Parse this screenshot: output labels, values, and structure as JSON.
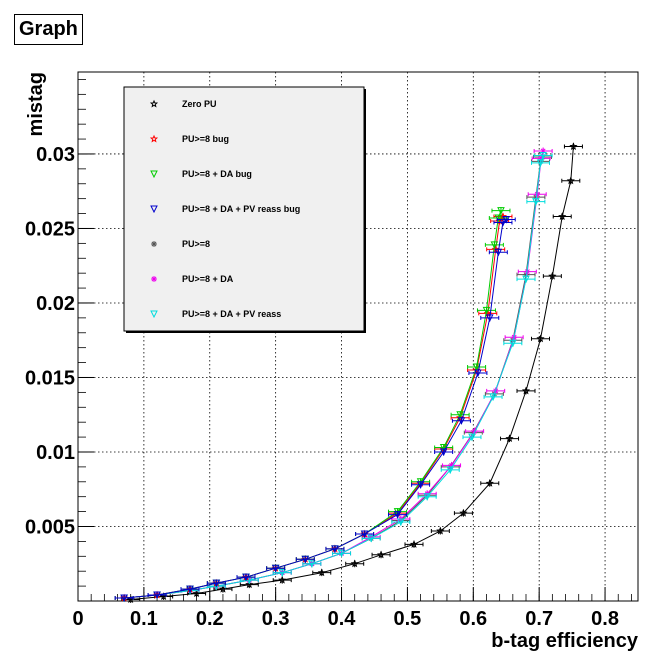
{
  "title": "Graph",
  "chart_data": {
    "type": "scatter",
    "title": "Graph",
    "xlabel": "b-tag efficiency",
    "ylabel": "mistag",
    "xlim": [
      0,
      0.85
    ],
    "ylim": [
      0,
      0.0355
    ],
    "x_ticks": [
      "0",
      "0.1",
      "0.2",
      "0.3",
      "0.4",
      "0.5",
      "0.6",
      "0.7",
      "0.8"
    ],
    "y_ticks": [
      "0.005",
      "0.01",
      "0.015",
      "0.02",
      "0.025",
      "0.03"
    ],
    "grid": true,
    "legend_position": "top-left",
    "series": [
      {
        "name": "Zero PU",
        "color": "#000000",
        "marker": "open-star",
        "x": [
          0.08,
          0.13,
          0.18,
          0.22,
          0.26,
          0.31,
          0.37,
          0.42,
          0.46,
          0.51,
          0.55,
          0.585,
          0.625,
          0.655,
          0.68,
          0.702,
          0.72,
          0.735,
          0.748,
          0.752
        ],
        "y": [
          0.0001,
          0.0003,
          0.0005,
          0.0008,
          0.0011,
          0.0014,
          0.0019,
          0.0025,
          0.0031,
          0.0038,
          0.0047,
          0.0059,
          0.0079,
          0.0109,
          0.0141,
          0.0176,
          0.0218,
          0.0258,
          0.0282,
          0.0305
        ]
      },
      {
        "name": "PU>=8 bug",
        "color": "#ff0000",
        "marker": "open-star",
        "x": [
          0.07,
          0.12,
          0.17,
          0.21,
          0.255,
          0.3,
          0.345,
          0.39,
          0.435,
          0.485,
          0.52,
          0.555,
          0.58,
          0.605,
          0.622,
          0.634,
          0.64,
          0.645
        ],
        "y": [
          0.0002,
          0.0004,
          0.0008,
          0.0012,
          0.0016,
          0.0022,
          0.0028,
          0.0035,
          0.0045,
          0.0059,
          0.0079,
          0.0102,
          0.0123,
          0.0155,
          0.0193,
          0.0236,
          0.0255,
          0.0258
        ]
      },
      {
        "name": "PU>=8 + DA bug",
        "color": "#00cc00",
        "marker": "open-triangle-down",
        "x": [
          0.07,
          0.12,
          0.17,
          0.21,
          0.255,
          0.3,
          0.345,
          0.39,
          0.435,
          0.485,
          0.52,
          0.555,
          0.58,
          0.605,
          0.62,
          0.632,
          0.638,
          0.642
        ],
        "y": [
          0.0002,
          0.0004,
          0.0008,
          0.0012,
          0.0016,
          0.0022,
          0.0028,
          0.0035,
          0.0045,
          0.006,
          0.008,
          0.0103,
          0.0125,
          0.0157,
          0.0195,
          0.0239,
          0.0257,
          0.0262
        ]
      },
      {
        "name": "PU>=8 + DA + PV reass bug",
        "color": "#0000cc",
        "marker": "open-triangle-down",
        "x": [
          0.07,
          0.12,
          0.17,
          0.21,
          0.255,
          0.3,
          0.345,
          0.39,
          0.435,
          0.485,
          0.52,
          0.555,
          0.582,
          0.607,
          0.625,
          0.638,
          0.645,
          0.65
        ],
        "y": [
          0.0002,
          0.0004,
          0.0008,
          0.0012,
          0.0016,
          0.0022,
          0.0028,
          0.0035,
          0.0045,
          0.0058,
          0.0078,
          0.01,
          0.0121,
          0.0153,
          0.019,
          0.0234,
          0.0254,
          0.0256
        ]
      },
      {
        "name": "PU>=8",
        "color": "#555555",
        "marker": "star",
        "x": [
          0.07,
          0.12,
          0.17,
          0.21,
          0.26,
          0.31,
          0.355,
          0.4,
          0.445,
          0.49,
          0.53,
          0.565,
          0.6,
          0.632,
          0.66,
          0.68,
          0.695,
          0.702,
          0.705
        ],
        "y": [
          0.0002,
          0.0004,
          0.0007,
          0.001,
          0.0014,
          0.0019,
          0.0025,
          0.0032,
          0.0042,
          0.0054,
          0.0071,
          0.009,
          0.0113,
          0.0139,
          0.0175,
          0.0219,
          0.0271,
          0.0295,
          0.0298
        ]
      },
      {
        "name": "PU>=8 + DA",
        "color": "#ee00ee",
        "marker": "star",
        "x": [
          0.07,
          0.12,
          0.17,
          0.21,
          0.26,
          0.31,
          0.355,
          0.4,
          0.445,
          0.49,
          0.53,
          0.567,
          0.602,
          0.634,
          0.662,
          0.682,
          0.697,
          0.703,
          0.706
        ],
        "y": [
          0.0002,
          0.0004,
          0.0007,
          0.001,
          0.0014,
          0.0019,
          0.0025,
          0.0032,
          0.0043,
          0.0055,
          0.0072,
          0.0091,
          0.0114,
          0.0141,
          0.0177,
          0.0221,
          0.0273,
          0.0297,
          0.0302
        ]
      },
      {
        "name": "PU>=8 + DA + PV reass",
        "color": "#00dddd",
        "marker": "open-triangle-down",
        "x": [
          0.07,
          0.12,
          0.17,
          0.21,
          0.26,
          0.31,
          0.355,
          0.4,
          0.445,
          0.49,
          0.53,
          0.565,
          0.598,
          0.63,
          0.66,
          0.68,
          0.695,
          0.702,
          0.706
        ],
        "y": [
          0.0002,
          0.0004,
          0.0007,
          0.001,
          0.0014,
          0.0019,
          0.0025,
          0.0032,
          0.0042,
          0.0053,
          0.007,
          0.0088,
          0.011,
          0.0137,
          0.0173,
          0.0216,
          0.0268,
          0.0294,
          0.0299
        ]
      }
    ]
  }
}
